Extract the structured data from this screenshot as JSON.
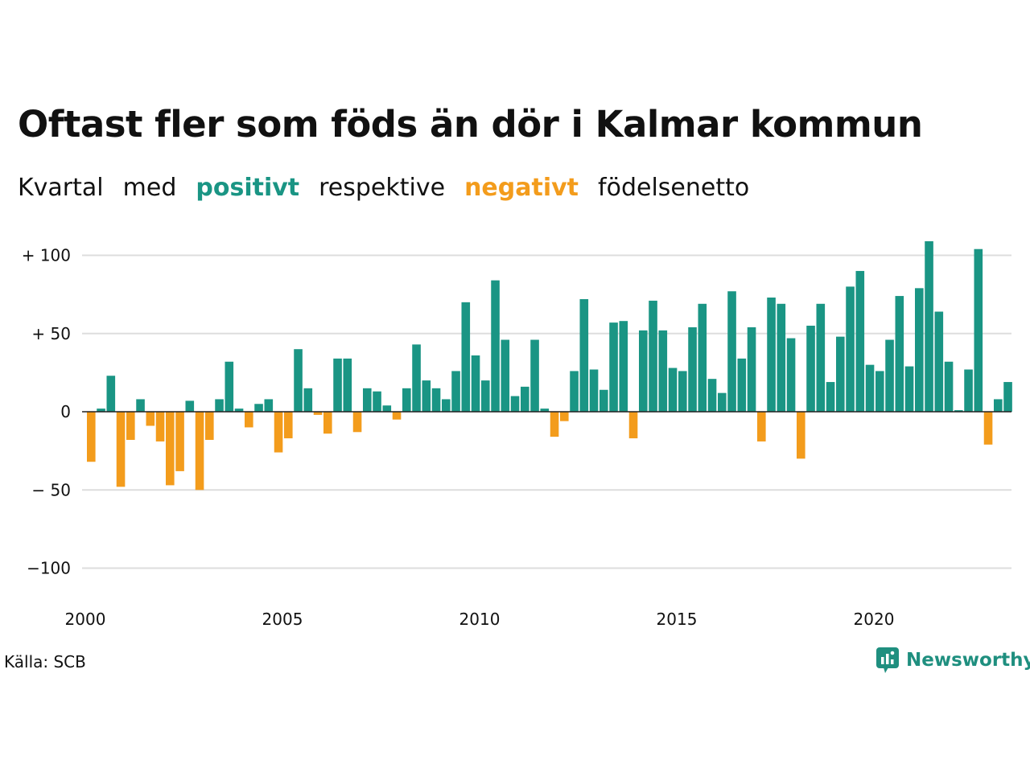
{
  "title": "Oftast fler som föds än dör i Kalmar kommun",
  "subtitle": {
    "words": [
      "Kvartal",
      "med",
      "positivt",
      "respektive",
      "negativt",
      "födelsenetto"
    ]
  },
  "source": "Källa: SCB",
  "logo_text": "Newsworthy",
  "colors": {
    "positive": "#1a9584",
    "negative": "#f39c1c",
    "grid": "#dddddd",
    "text": "#111111"
  },
  "chart_data": {
    "type": "bar",
    "title": "Oftast fler som föds än dör i Kalmar kommun",
    "subtitle": "Kvartal med positivt respektive negativt födelsenetto",
    "start_year": 2000,
    "periods_per_year": 4,
    "x_ticks": [
      "2000",
      "2005",
      "2010",
      "2015",
      "2020"
    ],
    "y_ticks": [
      {
        "value": 100,
        "label": "+ 100"
      },
      {
        "value": 50,
        "label": "+  50"
      },
      {
        "value": 0,
        "label": "0"
      },
      {
        "value": -50,
        "label": "− 50"
      },
      {
        "value": -100,
        "label": "−100"
      }
    ],
    "ylim": [
      -100,
      100
    ],
    "grid": true,
    "values": [
      -32,
      2,
      23,
      -48,
      -18,
      8,
      -9,
      -19,
      -47,
      -38,
      7,
      -50,
      -18,
      8,
      32,
      2,
      -10,
      5,
      8,
      -26,
      -17,
      40,
      15,
      -2,
      -14,
      34,
      34,
      -13,
      15,
      13,
      4,
      -5,
      15,
      43,
      20,
      15,
      8,
      26,
      70,
      36,
      20,
      84,
      46,
      10,
      16,
      46,
      2,
      -16,
      -6,
      26,
      72,
      27,
      14,
      57,
      58,
      -17,
      52,
      71,
      52,
      28,
      26,
      54,
      69,
      21,
      12,
      77,
      34,
      54,
      -19,
      73,
      69,
      47,
      -30,
      55,
      69,
      19,
      48,
      80,
      90,
      30,
      26,
      46,
      74,
      29,
      79,
      109,
      64,
      32,
      1,
      27,
      104,
      -21,
      8,
      19
    ]
  }
}
